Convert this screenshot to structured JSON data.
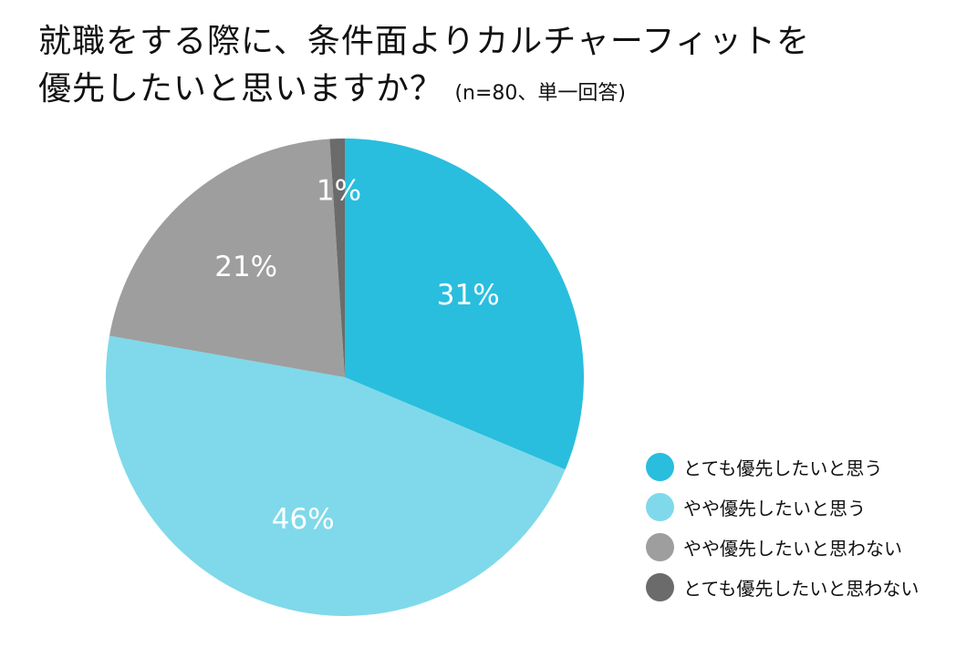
{
  "title": {
    "line1": "就職をする際に、条件面よりカルチャーフィットを",
    "line2": "優先したいと思いますか？",
    "note": "(n=80、単一回答)"
  },
  "chart_data": {
    "type": "pie",
    "categories": [
      "とても優先したいと思う",
      "やや優先したいと思う",
      "やや優先したいと思わない",
      "とても優先したいと思わない"
    ],
    "values": [
      31,
      46,
      21,
      1
    ],
    "labels": [
      "31%",
      "46%",
      "21%",
      "1%"
    ],
    "colors": [
      "#29bede",
      "#7fd9ea",
      "#9e9e9e",
      "#6b6b6b"
    ],
    "start": "12 o'clock",
    "direction": "clockwise",
    "legend": "bottom-right"
  }
}
